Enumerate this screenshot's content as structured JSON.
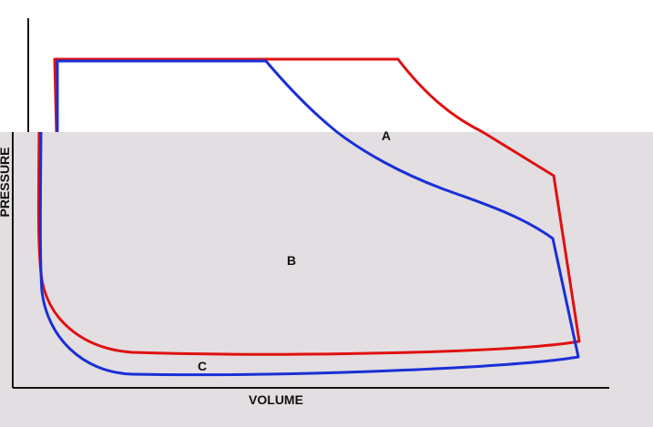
{
  "diagram": {
    "x_axis_label": "VOLUME",
    "y_axis_label": "PRESSURE",
    "regions": {
      "a": "A",
      "b": "B",
      "c": "C"
    },
    "curves": [
      {
        "id": "red-cycle",
        "color": "#e01010"
      },
      {
        "id": "blue-cycle",
        "color": "#1a2fd6"
      }
    ],
    "colors": {
      "axis": "#111111",
      "background_shade": "#e2dee2"
    }
  }
}
